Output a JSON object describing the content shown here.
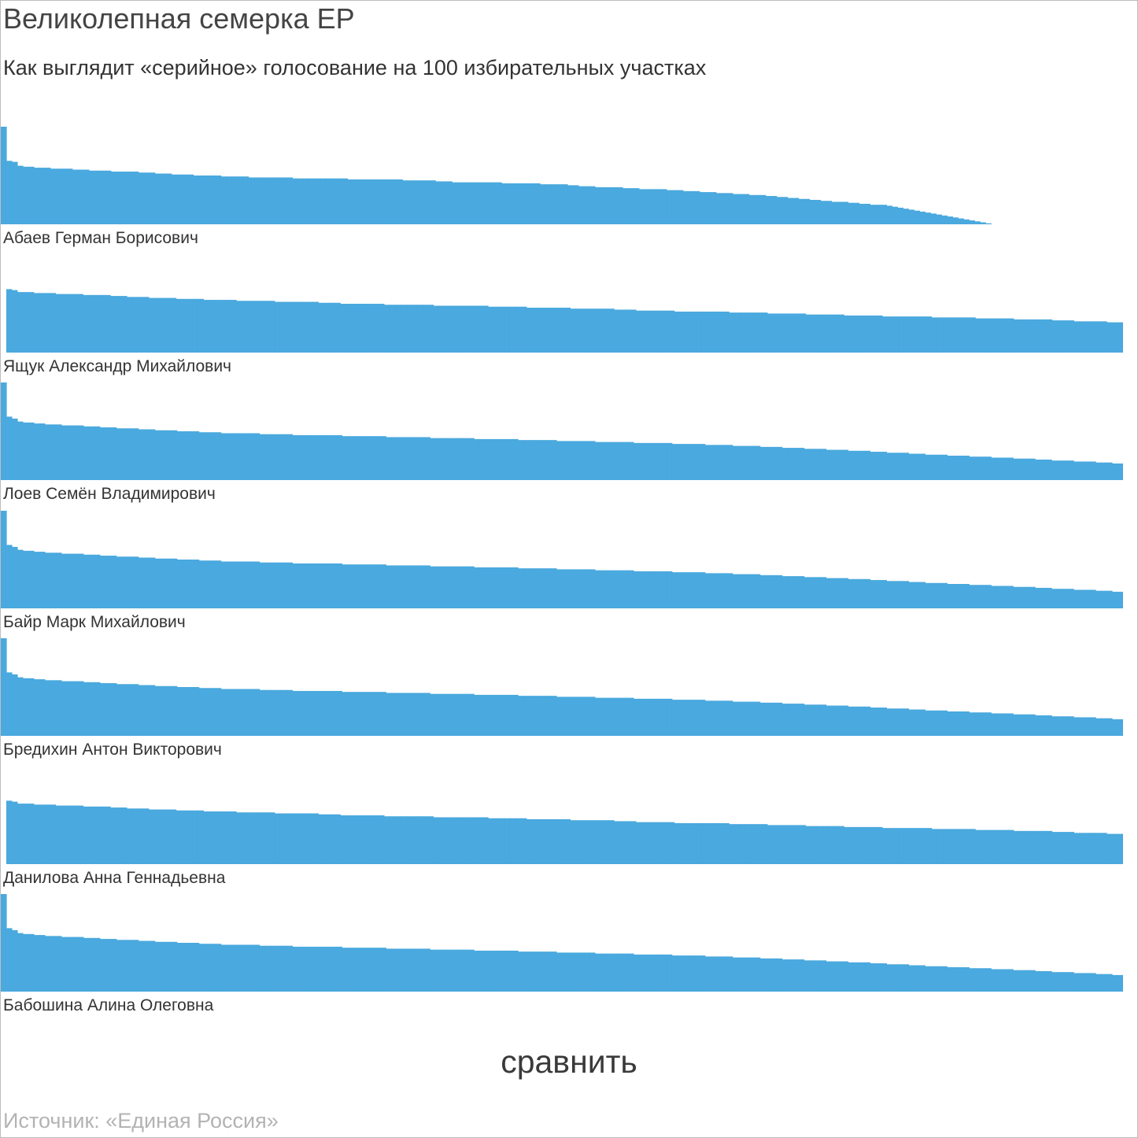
{
  "title": "Великолепная семерка ЕР",
  "subtitle": "Как выглядит «серийное» голосование на 100 избирательных участках",
  "compare_label": "сравнить",
  "source": "Источник: «Единая Россия»",
  "bar_color": "#4aa9de",
  "chart_data": [
    {
      "type": "bar",
      "name": "Абаев Герман Борисович",
      "values": [
        100,
        65,
        64,
        60,
        59,
        59,
        58,
        58,
        58,
        57,
        57,
        57,
        57,
        56,
        56,
        56,
        55,
        55,
        55,
        55,
        54,
        54,
        54,
        54,
        54,
        53,
        53,
        53,
        52,
        52,
        52,
        51,
        51,
        51,
        51,
        50,
        50,
        50,
        50,
        50,
        49,
        49,
        49,
        49,
        49,
        48,
        48,
        48,
        48,
        48,
        48,
        48,
        48,
        47,
        47,
        47,
        47,
        47,
        47,
        47,
        47,
        47,
        47,
        46,
        46,
        46,
        46,
        46,
        46,
        46,
        46,
        46,
        46,
        45,
        45,
        45,
        45,
        45,
        45,
        44,
        44,
        44,
        43,
        43,
        43,
        43,
        43,
        43,
        43,
        43,
        43,
        42,
        42,
        42,
        42,
        42,
        42,
        42,
        41,
        41,
        41,
        41,
        41,
        40,
        40,
        39,
        39,
        39,
        38,
        38,
        38,
        38,
        38,
        37,
        37,
        37,
        36,
        36,
        36,
        36,
        36,
        35,
        35,
        35,
        34,
        34,
        34,
        33,
        33,
        33,
        32,
        32,
        32,
        31,
        31,
        31,
        30,
        30,
        30,
        29,
        29,
        28,
        28,
        27,
        27,
        26,
        26,
        25,
        25,
        24,
        24,
        23,
        23,
        23,
        22,
        22,
        21,
        21,
        20,
        20,
        20,
        19,
        18,
        17,
        16,
        15,
        14,
        13,
        12,
        11,
        10,
        9,
        8,
        7,
        6,
        5,
        4,
        3,
        2,
        1,
        0,
        0,
        0,
        0,
        0,
        0,
        0,
        0,
        0,
        0,
        0,
        0,
        0,
        0,
        0,
        0,
        0,
        0,
        0,
        0,
        0,
        0,
        0,
        0
      ]
    },
    {
      "type": "bar",
      "name": "Ящук Александр Михайлович",
      "values": [
        0,
        65,
        64,
        62,
        62,
        62,
        61,
        61,
        61,
        61,
        60,
        60,
        60,
        60,
        60,
        59,
        59,
        59,
        59,
        59,
        58,
        58,
        58,
        57,
        57,
        57,
        57,
        56,
        56,
        56,
        56,
        56,
        55,
        55,
        55,
        55,
        55,
        54,
        54,
        54,
        54,
        54,
        54,
        53,
        53,
        53,
        53,
        53,
        53,
        53,
        52,
        52,
        52,
        52,
        52,
        52,
        52,
        52,
        51,
        51,
        51,
        51,
        50,
        50,
        50,
        50,
        50,
        50,
        50,
        50,
        49,
        49,
        49,
        49,
        49,
        49,
        49,
        49,
        49,
        48,
        48,
        48,
        48,
        48,
        48,
        48,
        48,
        48,
        48,
        47,
        47,
        47,
        47,
        47,
        47,
        47,
        46,
        46,
        46,
        46,
        46,
        46,
        46,
        46,
        45,
        45,
        45,
        45,
        45,
        45,
        45,
        45,
        44,
        44,
        44,
        44,
        43,
        43,
        43,
        43,
        43,
        43,
        43,
        42,
        42,
        42,
        42,
        42,
        42,
        42,
        42,
        42,
        42,
        41,
        41,
        41,
        41,
        41,
        41,
        41,
        40,
        40,
        40,
        40,
        40,
        40,
        40,
        39,
        39,
        39,
        39,
        39,
        39,
        39,
        38,
        38,
        38,
        38,
        38,
        38,
        38,
        37,
        37,
        37,
        37,
        37,
        37,
        37,
        37,
        37,
        36,
        36,
        36,
        36,
        36,
        36,
        36,
        36,
        35,
        35,
        35,
        35,
        35,
        35,
        35,
        34,
        34,
        34,
        34,
        34,
        34,
        34,
        33,
        33,
        33,
        33,
        32,
        32,
        32,
        32,
        32,
        32,
        31,
        31,
        31
      ]
    },
    {
      "type": "bar",
      "name": "Лоев Семён Владимирович",
      "values": [
        100,
        65,
        63,
        60,
        59,
        59,
        58,
        58,
        57,
        57,
        57,
        56,
        56,
        56,
        56,
        55,
        55,
        55,
        54,
        54,
        54,
        53,
        53,
        53,
        53,
        52,
        52,
        52,
        51,
        51,
        51,
        51,
        50,
        50,
        50,
        50,
        49,
        49,
        49,
        49,
        48,
        48,
        48,
        48,
        48,
        48,
        48,
        47,
        47,
        47,
        47,
        47,
        47,
        46,
        46,
        46,
        46,
        46,
        46,
        46,
        46,
        46,
        45,
        45,
        45,
        45,
        45,
        45,
        45,
        45,
        44,
        44,
        44,
        44,
        44,
        44,
        44,
        44,
        43,
        43,
        43,
        43,
        43,
        43,
        43,
        43,
        42,
        42,
        42,
        42,
        42,
        42,
        42,
        42,
        41,
        41,
        41,
        41,
        41,
        41,
        41,
        40,
        40,
        40,
        40,
        40,
        40,
        40,
        39,
        39,
        39,
        39,
        39,
        39,
        39,
        38,
        38,
        38,
        38,
        38,
        38,
        38,
        37,
        37,
        37,
        37,
        37,
        37,
        36,
        36,
        36,
        36,
        36,
        35,
        35,
        35,
        35,
        35,
        34,
        34,
        34,
        34,
        33,
        33,
        33,
        33,
        32,
        32,
        32,
        32,
        31,
        31,
        31,
        31,
        30,
        30,
        30,
        30,
        29,
        29,
        29,
        28,
        28,
        28,
        28,
        27,
        27,
        27,
        26,
        26,
        26,
        26,
        25,
        25,
        25,
        25,
        24,
        24,
        24,
        24,
        23,
        23,
        23,
        23,
        22,
        22,
        22,
        22,
        21,
        21,
        21,
        20,
        20,
        20,
        20,
        19,
        19,
        19,
        19,
        18,
        18,
        18,
        17,
        17
      ]
    },
    {
      "type": "bar",
      "name": "Байр Марк Михайлович",
      "values": [
        100,
        65,
        63,
        60,
        59,
        59,
        58,
        58,
        57,
        57,
        57,
        56,
        56,
        56,
        56,
        55,
        55,
        55,
        54,
        54,
        54,
        53,
        53,
        53,
        53,
        52,
        52,
        52,
        51,
        51,
        51,
        51,
        50,
        50,
        50,
        50,
        49,
        49,
        49,
        49,
        48,
        48,
        48,
        48,
        48,
        48,
        48,
        47,
        47,
        47,
        47,
        47,
        47,
        46,
        46,
        46,
        46,
        46,
        46,
        46,
        46,
        46,
        45,
        45,
        45,
        45,
        45,
        45,
        45,
        45,
        44,
        44,
        44,
        44,
        44,
        44,
        44,
        44,
        43,
        43,
        43,
        43,
        43,
        43,
        43,
        43,
        42,
        42,
        42,
        42,
        42,
        42,
        42,
        42,
        41,
        41,
        41,
        41,
        41,
        41,
        41,
        40,
        40,
        40,
        40,
        40,
        40,
        40,
        39,
        39,
        39,
        39,
        39,
        39,
        39,
        38,
        38,
        38,
        38,
        38,
        38,
        38,
        37,
        37,
        37,
        37,
        37,
        37,
        36,
        36,
        36,
        36,
        36,
        35,
        35,
        35,
        35,
        35,
        34,
        34,
        34,
        34,
        33,
        33,
        33,
        33,
        32,
        32,
        32,
        32,
        31,
        31,
        31,
        31,
        30,
        30,
        30,
        30,
        29,
        29,
        29,
        28,
        28,
        28,
        28,
        27,
        27,
        27,
        26,
        26,
        26,
        26,
        25,
        25,
        25,
        25,
        24,
        24,
        24,
        24,
        23,
        23,
        23,
        23,
        22,
        22,
        22,
        22,
        21,
        21,
        21,
        20,
        20,
        20,
        20,
        19,
        19,
        19,
        19,
        18,
        18,
        18,
        17,
        17
      ]
    },
    {
      "type": "bar",
      "name": "Бредихин Антон Викторович",
      "values": [
        100,
        65,
        63,
        60,
        59,
        59,
        58,
        58,
        57,
        57,
        57,
        56,
        56,
        56,
        56,
        55,
        55,
        55,
        54,
        54,
        54,
        53,
        53,
        53,
        53,
        52,
        52,
        52,
        51,
        51,
        51,
        51,
        50,
        50,
        50,
        50,
        49,
        49,
        49,
        49,
        48,
        48,
        48,
        48,
        48,
        48,
        48,
        47,
        47,
        47,
        47,
        47,
        47,
        46,
        46,
        46,
        46,
        46,
        46,
        46,
        46,
        46,
        45,
        45,
        45,
        45,
        45,
        45,
        45,
        45,
        44,
        44,
        44,
        44,
        44,
        44,
        44,
        44,
        43,
        43,
        43,
        43,
        43,
        43,
        43,
        43,
        42,
        42,
        42,
        42,
        42,
        42,
        42,
        42,
        41,
        41,
        41,
        41,
        41,
        41,
        41,
        40,
        40,
        40,
        40,
        40,
        40,
        40,
        39,
        39,
        39,
        39,
        39,
        39,
        39,
        38,
        38,
        38,
        38,
        38,
        38,
        38,
        37,
        37,
        37,
        37,
        37,
        37,
        36,
        36,
        36,
        36,
        36,
        35,
        35,
        35,
        35,
        35,
        34,
        34,
        34,
        34,
        33,
        33,
        33,
        33,
        32,
        32,
        32,
        32,
        31,
        31,
        31,
        31,
        30,
        30,
        30,
        30,
        29,
        29,
        29,
        28,
        28,
        28,
        28,
        27,
        27,
        27,
        26,
        26,
        26,
        26,
        25,
        25,
        25,
        25,
        24,
        24,
        24,
        24,
        23,
        23,
        23,
        23,
        22,
        22,
        22,
        22,
        21,
        21,
        21,
        20,
        20,
        20,
        20,
        19,
        19,
        19,
        19,
        18,
        18,
        18,
        17,
        17
      ]
    },
    {
      "type": "bar",
      "name": "Данилова Анна Геннадьевна",
      "values": [
        0,
        65,
        64,
        62,
        62,
        62,
        61,
        61,
        61,
        61,
        60,
        60,
        60,
        60,
        60,
        59,
        59,
        59,
        59,
        59,
        58,
        58,
        58,
        57,
        57,
        57,
        57,
        56,
        56,
        56,
        56,
        56,
        55,
        55,
        55,
        55,
        55,
        54,
        54,
        54,
        54,
        54,
        54,
        53,
        53,
        53,
        53,
        53,
        53,
        53,
        52,
        52,
        52,
        52,
        52,
        52,
        52,
        52,
        51,
        51,
        51,
        51,
        50,
        50,
        50,
        50,
        50,
        50,
        50,
        50,
        49,
        49,
        49,
        49,
        49,
        49,
        49,
        49,
        49,
        48,
        48,
        48,
        48,
        48,
        48,
        48,
        48,
        48,
        48,
        47,
        47,
        47,
        47,
        47,
        47,
        47,
        46,
        46,
        46,
        46,
        46,
        46,
        46,
        46,
        45,
        45,
        45,
        45,
        45,
        45,
        45,
        45,
        44,
        44,
        44,
        44,
        43,
        43,
        43,
        43,
        43,
        43,
        43,
        42,
        42,
        42,
        42,
        42,
        42,
        42,
        42,
        42,
        42,
        41,
        41,
        41,
        41,
        41,
        41,
        41,
        40,
        40,
        40,
        40,
        40,
        40,
        40,
        39,
        39,
        39,
        39,
        39,
        39,
        39,
        38,
        38,
        38,
        38,
        38,
        38,
        38,
        37,
        37,
        37,
        37,
        37,
        37,
        37,
        37,
        37,
        36,
        36,
        36,
        36,
        36,
        36,
        36,
        36,
        35,
        35,
        35,
        35,
        35,
        35,
        35,
        34,
        34,
        34,
        34,
        34,
        34,
        34,
        33,
        33,
        33,
        33,
        32,
        32,
        32,
        32,
        32,
        32,
        31,
        31,
        31
      ]
    },
    {
      "type": "bar",
      "name": "Бабошина Алина Олеговна",
      "values": [
        100,
        65,
        63,
        60,
        59,
        59,
        58,
        58,
        57,
        57,
        57,
        56,
        56,
        56,
        56,
        55,
        55,
        55,
        54,
        54,
        54,
        53,
        53,
        53,
        53,
        52,
        52,
        52,
        51,
        51,
        51,
        51,
        50,
        50,
        50,
        50,
        49,
        49,
        49,
        49,
        48,
        48,
        48,
        48,
        48,
        48,
        48,
        47,
        47,
        47,
        47,
        47,
        47,
        46,
        46,
        46,
        46,
        46,
        46,
        46,
        46,
        46,
        45,
        45,
        45,
        45,
        45,
        45,
        45,
        45,
        44,
        44,
        44,
        44,
        44,
        44,
        44,
        44,
        43,
        43,
        43,
        43,
        43,
        43,
        43,
        43,
        42,
        42,
        42,
        42,
        42,
        42,
        42,
        42,
        41,
        41,
        41,
        41,
        41,
        41,
        41,
        40,
        40,
        40,
        40,
        40,
        40,
        40,
        39,
        39,
        39,
        39,
        39,
        39,
        39,
        38,
        38,
        38,
        38,
        38,
        38,
        38,
        37,
        37,
        37,
        37,
        37,
        37,
        36,
        36,
        36,
        36,
        36,
        35,
        35,
        35,
        35,
        35,
        34,
        34,
        34,
        34,
        33,
        33,
        33,
        33,
        32,
        32,
        32,
        32,
        31,
        31,
        31,
        31,
        30,
        30,
        30,
        30,
        29,
        29,
        29,
        28,
        28,
        28,
        28,
        27,
        27,
        27,
        26,
        26,
        26,
        26,
        25,
        25,
        25,
        25,
        24,
        24,
        24,
        24,
        23,
        23,
        23,
        23,
        22,
        22,
        22,
        22,
        21,
        21,
        21,
        20,
        20,
        20,
        20,
        19,
        19,
        19,
        19,
        18,
        18,
        18,
        17,
        17
      ]
    }
  ]
}
